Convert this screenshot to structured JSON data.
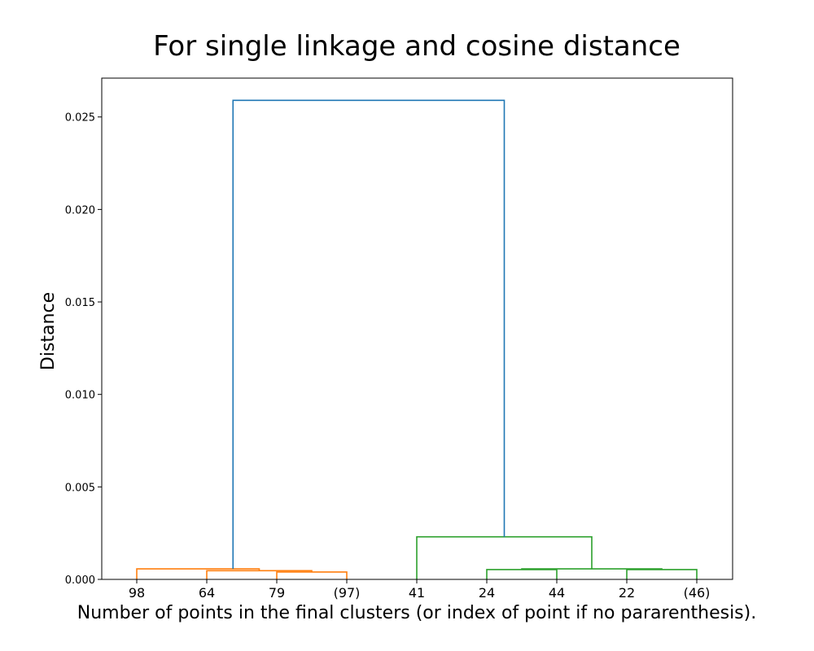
{
  "chart_data": {
    "type": "dendrogram",
    "title": "For single linkage and cosine distance",
    "xlabel": "Number of points in the final clusters (or index of point if no pararenthesis).",
    "ylabel": "Distance",
    "ylim": [
      0,
      0.0271
    ],
    "yticks": [
      0.0,
      0.005,
      0.01,
      0.015,
      0.02,
      0.025
    ],
    "ytick_labels": [
      "0.000",
      "0.005",
      "0.010",
      "0.015",
      "0.020",
      "0.025"
    ],
    "leaves": [
      "98",
      "64",
      "79",
      "(97)",
      "41",
      "24",
      "44",
      "22",
      "(46)"
    ],
    "grid": false,
    "colors": {
      "cluster_1": "#ff7f0e",
      "cluster_2": "#2ca02c",
      "above_threshold": "#1f77b4",
      "axes": "#000000"
    },
    "links": [
      {
        "color": "cluster_1",
        "left": 2,
        "right": 3,
        "height": 0.0004,
        "left_height": 0,
        "right_height": 0
      },
      {
        "color": "cluster_1",
        "left": 1,
        "right": 2.5,
        "height": 0.00047,
        "left_height": 0,
        "right_height": 0.0004
      },
      {
        "color": "cluster_1",
        "left": 0,
        "right": 1.75,
        "height": 0.00057,
        "left_height": 0,
        "right_height": 0.00047
      },
      {
        "color": "cluster_2",
        "left": 5,
        "right": 6,
        "height": 0.00053,
        "left_height": 0,
        "right_height": 0
      },
      {
        "color": "cluster_2",
        "left": 7,
        "right": 8,
        "height": 0.00053,
        "left_height": 0,
        "right_height": 0
      },
      {
        "color": "cluster_2",
        "left": 5.5,
        "right": 7.5,
        "height": 0.00057,
        "left_height": 0.00053,
        "right_height": 0.00053
      },
      {
        "color": "cluster_2",
        "left": 4,
        "right": 6.5,
        "height": 0.0023,
        "left_height": 0,
        "right_height": 0.00057
      },
      {
        "color": "above_threshold",
        "left": 1.375,
        "right": 5.25,
        "height": 0.0259,
        "left_height": 0.00057,
        "right_height": 0.0023
      }
    ]
  }
}
